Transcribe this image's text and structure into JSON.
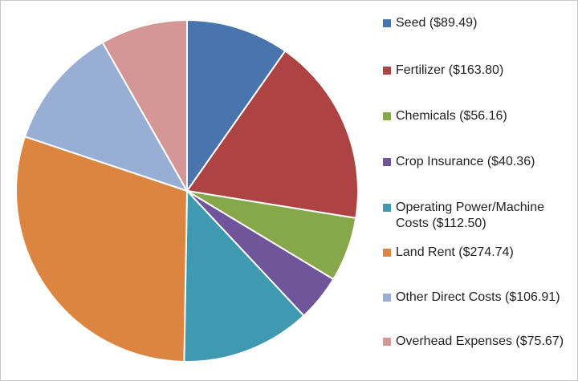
{
  "chart_data": {
    "type": "pie",
    "start": "12 o'clock",
    "direction": "clockwise",
    "legend_position": "right",
    "slices": [
      {
        "label": "Seed ($89.49)",
        "value": 89.49,
        "color": "#4a74ad"
      },
      {
        "label": "Fertilizer ($163.80)",
        "value": 163.8,
        "color": "#ad4443"
      },
      {
        "label": "Chemicals ($56.16)",
        "value": 56.16,
        "color": "#87a84a"
      },
      {
        "label": "Crop Insurance ($40.36)",
        "value": 40.36,
        "color": "#70559a"
      },
      {
        "label": "Operating Power/Machine Costs ($112.50)",
        "value": 112.5,
        "color": "#3f9ab1"
      },
      {
        "label": "Land Rent ($274.74)",
        "value": 274.74,
        "color": "#db8541"
      },
      {
        "label": "Other Direct Costs ($106.91)",
        "value": 106.91,
        "color": "#98aed4"
      },
      {
        "label": "Overhead Expenses ($75.67)",
        "value": 75.67,
        "color": "#d49795"
      }
    ]
  }
}
